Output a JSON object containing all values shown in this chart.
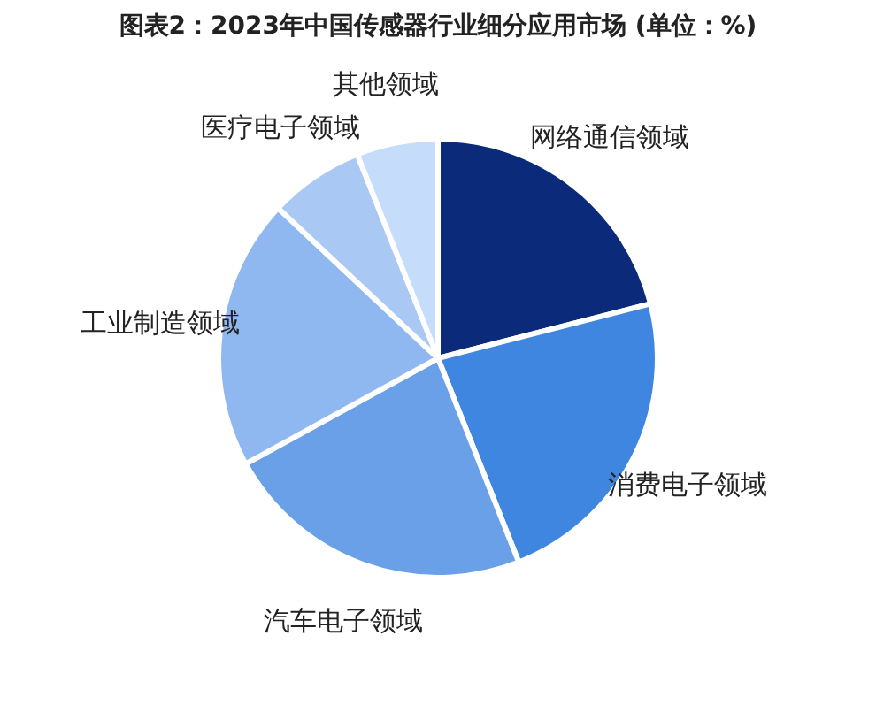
{
  "chart_data": {
    "type": "pie",
    "title": "图表2：2023年中国传感器行业细分应用市场 (单位：%)",
    "categories": [
      "网络通信领域",
      "消费电子领域",
      "汽车电子领域",
      "工业制造领域",
      "医疗电子领域",
      "其他领域"
    ],
    "values": [
      21,
      23,
      23,
      20,
      7,
      6
    ],
    "colors": [
      "#0b2a7a",
      "#3f86e0",
      "#6aa0e8",
      "#8fb8f0",
      "#a9c8f4",
      "#c5dcfa"
    ],
    "legend": false
  }
}
